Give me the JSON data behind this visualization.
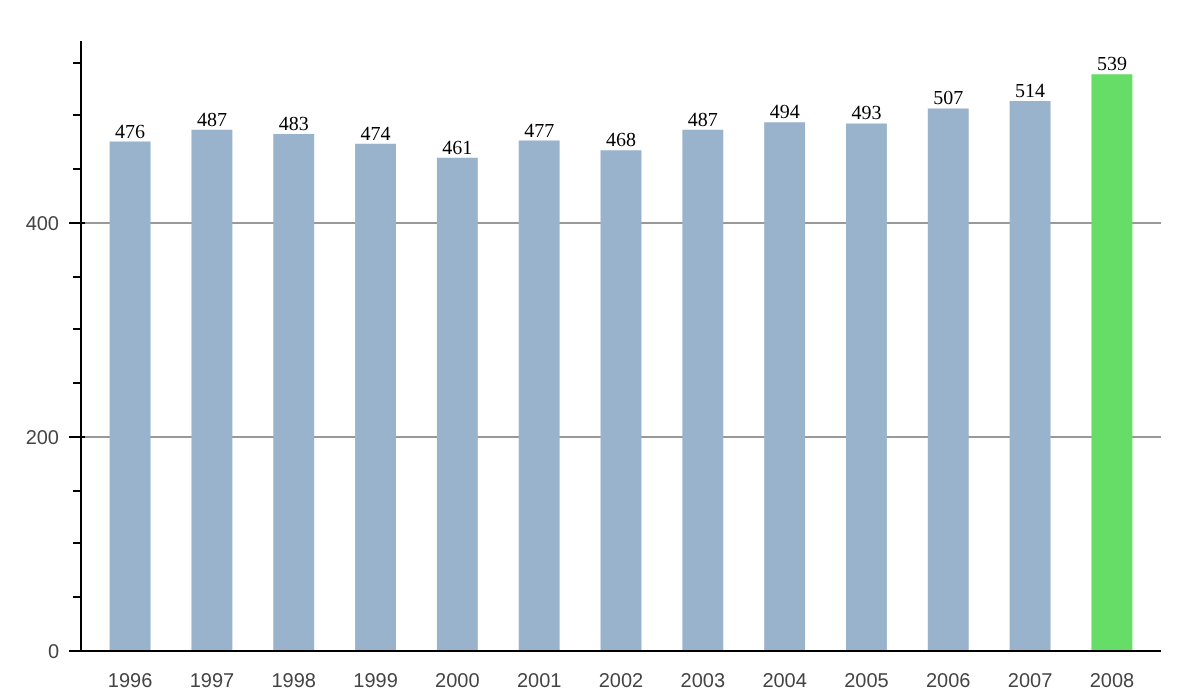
{
  "chart_data": {
    "type": "bar",
    "categories": [
      "1996",
      "1997",
      "1998",
      "1999",
      "2000",
      "2001",
      "2002",
      "2003",
      "2004",
      "2005",
      "2006",
      "2007",
      "2008"
    ],
    "values": [
      476,
      487,
      483,
      474,
      461,
      477,
      468,
      487,
      494,
      493,
      507,
      514,
      539
    ],
    "colors": [
      "#9ab3cc",
      "#9ab3cc",
      "#9ab3cc",
      "#9ab3cc",
      "#9ab3cc",
      "#9ab3cc",
      "#9ab3cc",
      "#9ab3cc",
      "#9ab3cc",
      "#9ab3cc",
      "#9ab3cc",
      "#9ab3cc",
      "#66dd66"
    ],
    "ylim": [
      0,
      570
    ],
    "yticks": [
      0,
      200,
      400
    ],
    "grid": "y",
    "data_labels": true
  }
}
